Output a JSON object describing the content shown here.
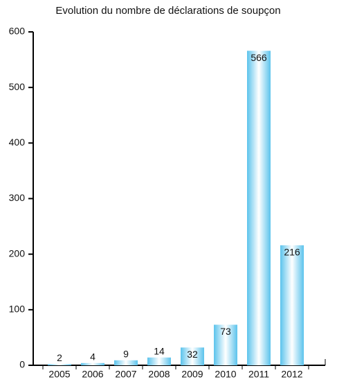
{
  "chart_data": {
    "type": "bar",
    "title": "Evolution du nombre de déclarations de soupçon",
    "categories": [
      "2005",
      "2006",
      "2007",
      "2008",
      "2009",
      "2010",
      "2011",
      "2012"
    ],
    "values": [
      2,
      4,
      9,
      14,
      32,
      73,
      566,
      216
    ],
    "color": "#5bc3ec",
    "ylim": [
      0,
      600
    ],
    "yticks": [
      0,
      100,
      200,
      300,
      400,
      500,
      600
    ]
  }
}
